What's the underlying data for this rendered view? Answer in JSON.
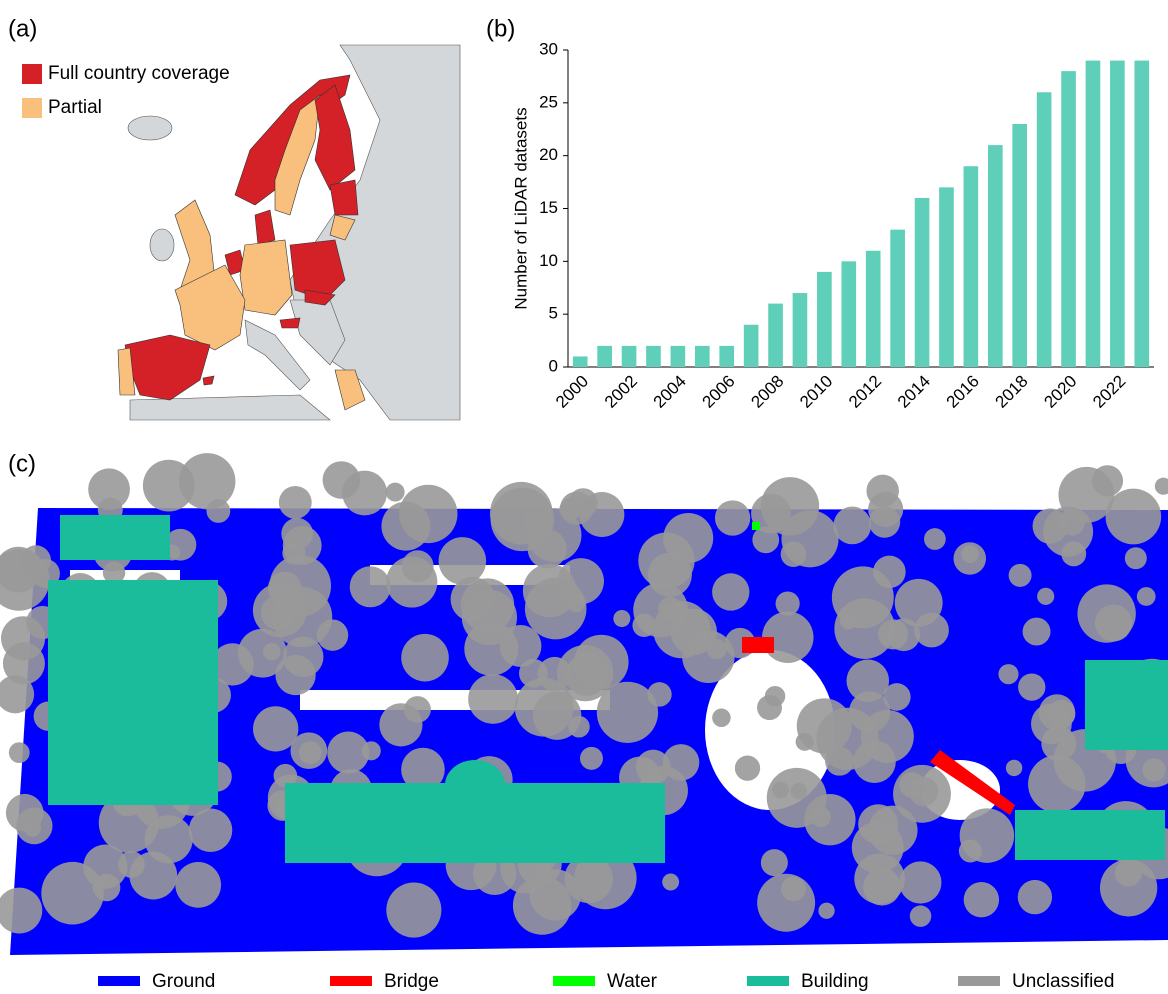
{
  "panel_labels": [
    "(a)",
    "(b)",
    "(c)"
  ],
  "map_legend": [
    {
      "label": "Full country coverage",
      "color": "#d42027"
    },
    {
      "label": "Partial",
      "color": "#f8c07c"
    }
  ],
  "chart_data": [
    {
      "type": "bar",
      "y_label": "Number of LiDAR datasets",
      "color": "#5fcfb9",
      "categories": [
        "2000",
        null,
        "2002",
        null,
        "2004",
        null,
        "2006",
        null,
        "2008",
        null,
        "2010",
        null,
        "2012",
        null,
        "2014",
        null,
        "2016",
        null,
        "2018",
        null,
        "2020",
        null,
        "2022",
        null
      ],
      "values": [
        1,
        2,
        2,
        2,
        2,
        2,
        2,
        4,
        6,
        7,
        9,
        10,
        11,
        13,
        16,
        17,
        19,
        21,
        23,
        26,
        28,
        29,
        29,
        29
      ],
      "ylim": [
        0,
        30
      ],
      "yticks": [
        0,
        5,
        10,
        15,
        20,
        25,
        30
      ]
    }
  ],
  "point_cloud_legend": [
    {
      "label": "Ground",
      "color": "#0000ff"
    },
    {
      "label": "Bridge",
      "color": "#ff0000"
    },
    {
      "label": "Water",
      "color": "#00ff00"
    },
    {
      "label": "Building",
      "color": "#1abc9c"
    },
    {
      "label": "Unclassified",
      "color": "#999999"
    }
  ]
}
